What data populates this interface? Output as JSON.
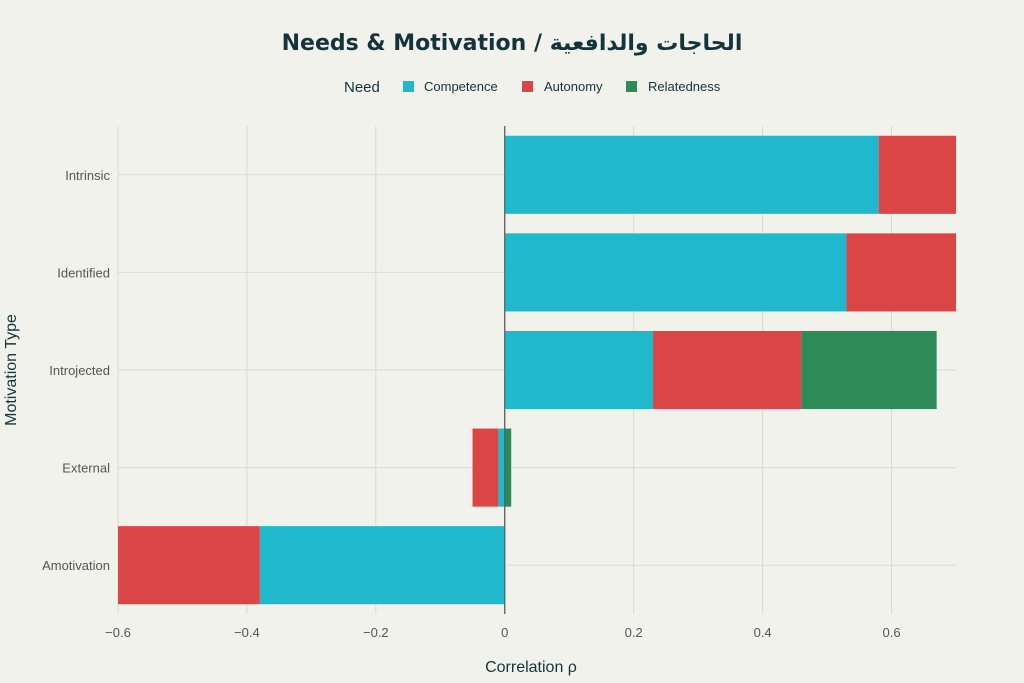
{
  "chart_data": {
    "type": "bar",
    "orientation": "horizontal",
    "stacked": true,
    "title": "Needs & Motivation / الحاجات والدافعية",
    "xlabel": "Correlation ρ",
    "ylabel": "Motivation Type",
    "xlim": [
      -0.6,
      0.7
    ],
    "xticks": [
      -0.6,
      -0.4,
      -0.2,
      0,
      0.2,
      0.4,
      0.6
    ],
    "xtick_labels": [
      "−0.6",
      "−0.4",
      "−0.2",
      "0",
      "0.2",
      "0.4",
      "0.6"
    ],
    "grid": true,
    "legend": {
      "title": "Need",
      "placement": "top-center"
    },
    "categories": [
      "Intrinsic",
      "Identified",
      "Introjected",
      "External",
      "Amotivation"
    ],
    "series": [
      {
        "name": "Competence",
        "color": "#1fb8cd",
        "values": [
          0.58,
          0.53,
          0.23,
          -0.01,
          -0.38
        ]
      },
      {
        "name": "Autonomy",
        "color": "#db4545",
        "values": [
          0.12,
          0.17,
          0.23,
          -0.04,
          -0.22
        ]
      },
      {
        "name": "Relatedness",
        "color": "#2e8b57",
        "values": [
          0,
          0,
          0.21,
          0.01,
          0
        ]
      }
    ]
  }
}
